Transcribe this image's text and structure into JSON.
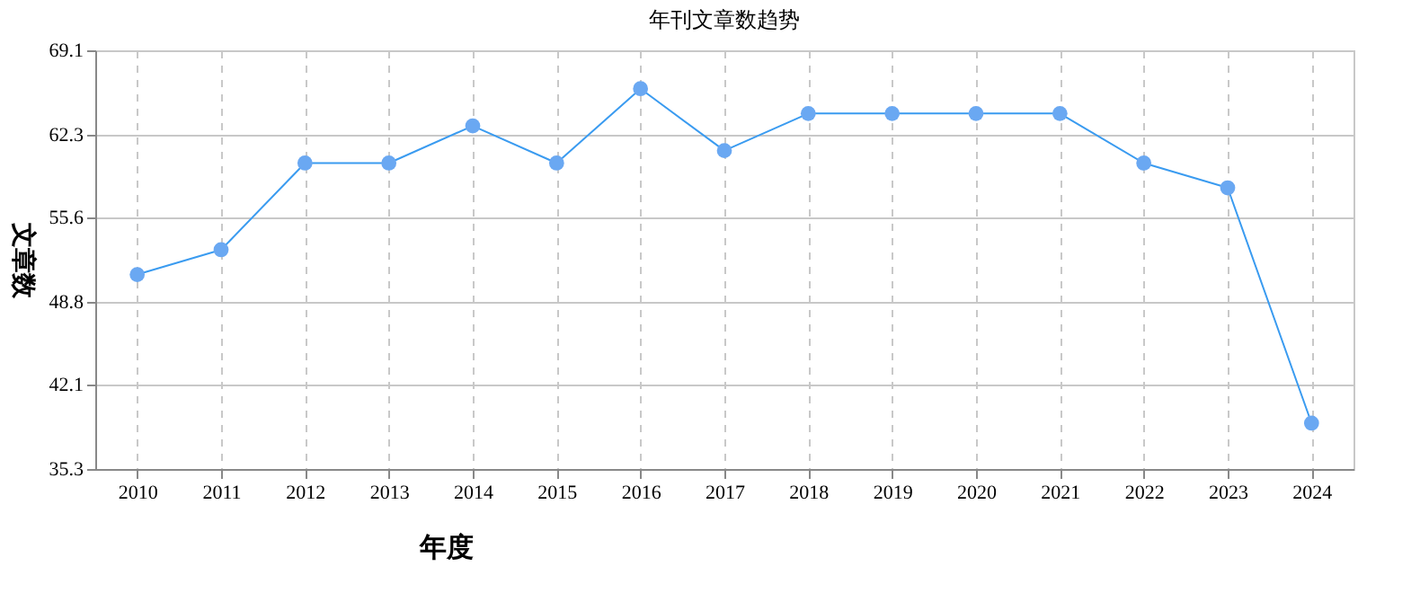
{
  "chart_data": {
    "type": "line",
    "title": "年刊文章数趋势",
    "xlabel": "年度",
    "ylabel": "文章数",
    "categories": [
      "2010",
      "2011",
      "2012",
      "2013",
      "2014",
      "2015",
      "2016",
      "2017",
      "2018",
      "2019",
      "2020",
      "2021",
      "2022",
      "2023",
      "2024"
    ],
    "series": [
      {
        "color": "#3a9bf0",
        "values": [
          51,
          53,
          60,
          60,
          63,
          60,
          66,
          61,
          64,
          64,
          64,
          64,
          60,
          58,
          39
        ]
      }
    ],
    "ylim": [
      35.3,
      69.1
    ],
    "yticks": [
      35.3,
      42.1,
      48.8,
      55.6,
      62.3,
      69.1
    ],
    "grid": true,
    "marker": "circle",
    "line_style": "solid"
  }
}
